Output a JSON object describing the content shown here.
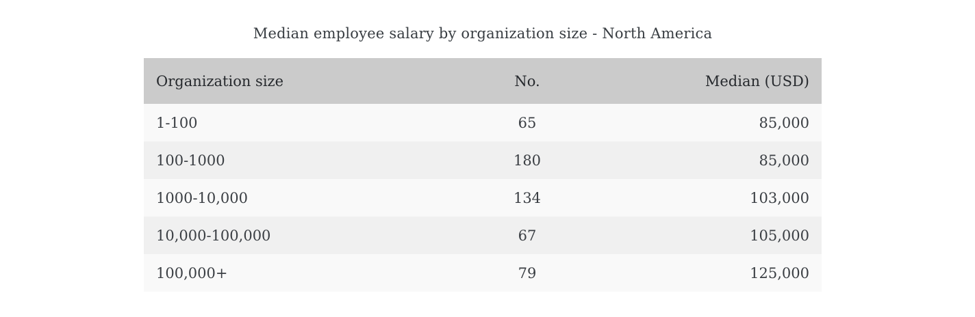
{
  "title": "Median employee salary by organization size - North America",
  "table": {
    "columns": [
      {
        "label": "Organization size",
        "align": "left"
      },
      {
        "label": "No.",
        "align": "center"
      },
      {
        "label": "Median (USD)",
        "align": "right"
      }
    ],
    "rows": [
      [
        "1-100",
        "65",
        "85,000"
      ],
      [
        "100-1000",
        "180",
        "85,000"
      ],
      [
        "1000-10,000",
        "134",
        "103,000"
      ],
      [
        "10,000-100,000",
        "67",
        "105,000"
      ],
      [
        "100,000+",
        "79",
        "125,000"
      ]
    ]
  },
  "colors": {
    "page_bg": "#ffffff",
    "header_bg": "#cbcbcb",
    "row_light": "#f9f9f9",
    "row_dark": "#f0f0f0",
    "header_text": "#26292d",
    "body_text": "#3a3e43"
  },
  "chart_data": {
    "type": "table",
    "title": "Median employee salary by organization size - North America",
    "columns": [
      "Organization size",
      "No.",
      "Median (USD)"
    ],
    "rows": [
      {
        "organization_size": "1-100",
        "no": 65,
        "median_usd": 85000
      },
      {
        "organization_size": "100-1000",
        "no": 180,
        "median_usd": 85000
      },
      {
        "organization_size": "1000-10,000",
        "no": 134,
        "median_usd": 103000
      },
      {
        "organization_size": "10,000-100,000",
        "no": 67,
        "median_usd": 105000
      },
      {
        "organization_size": "100,000+",
        "no": 79,
        "median_usd": 125000
      }
    ],
    "layout": {
      "header_background": "#cbcbcb",
      "striped_rows": true,
      "borders": "none"
    }
  }
}
